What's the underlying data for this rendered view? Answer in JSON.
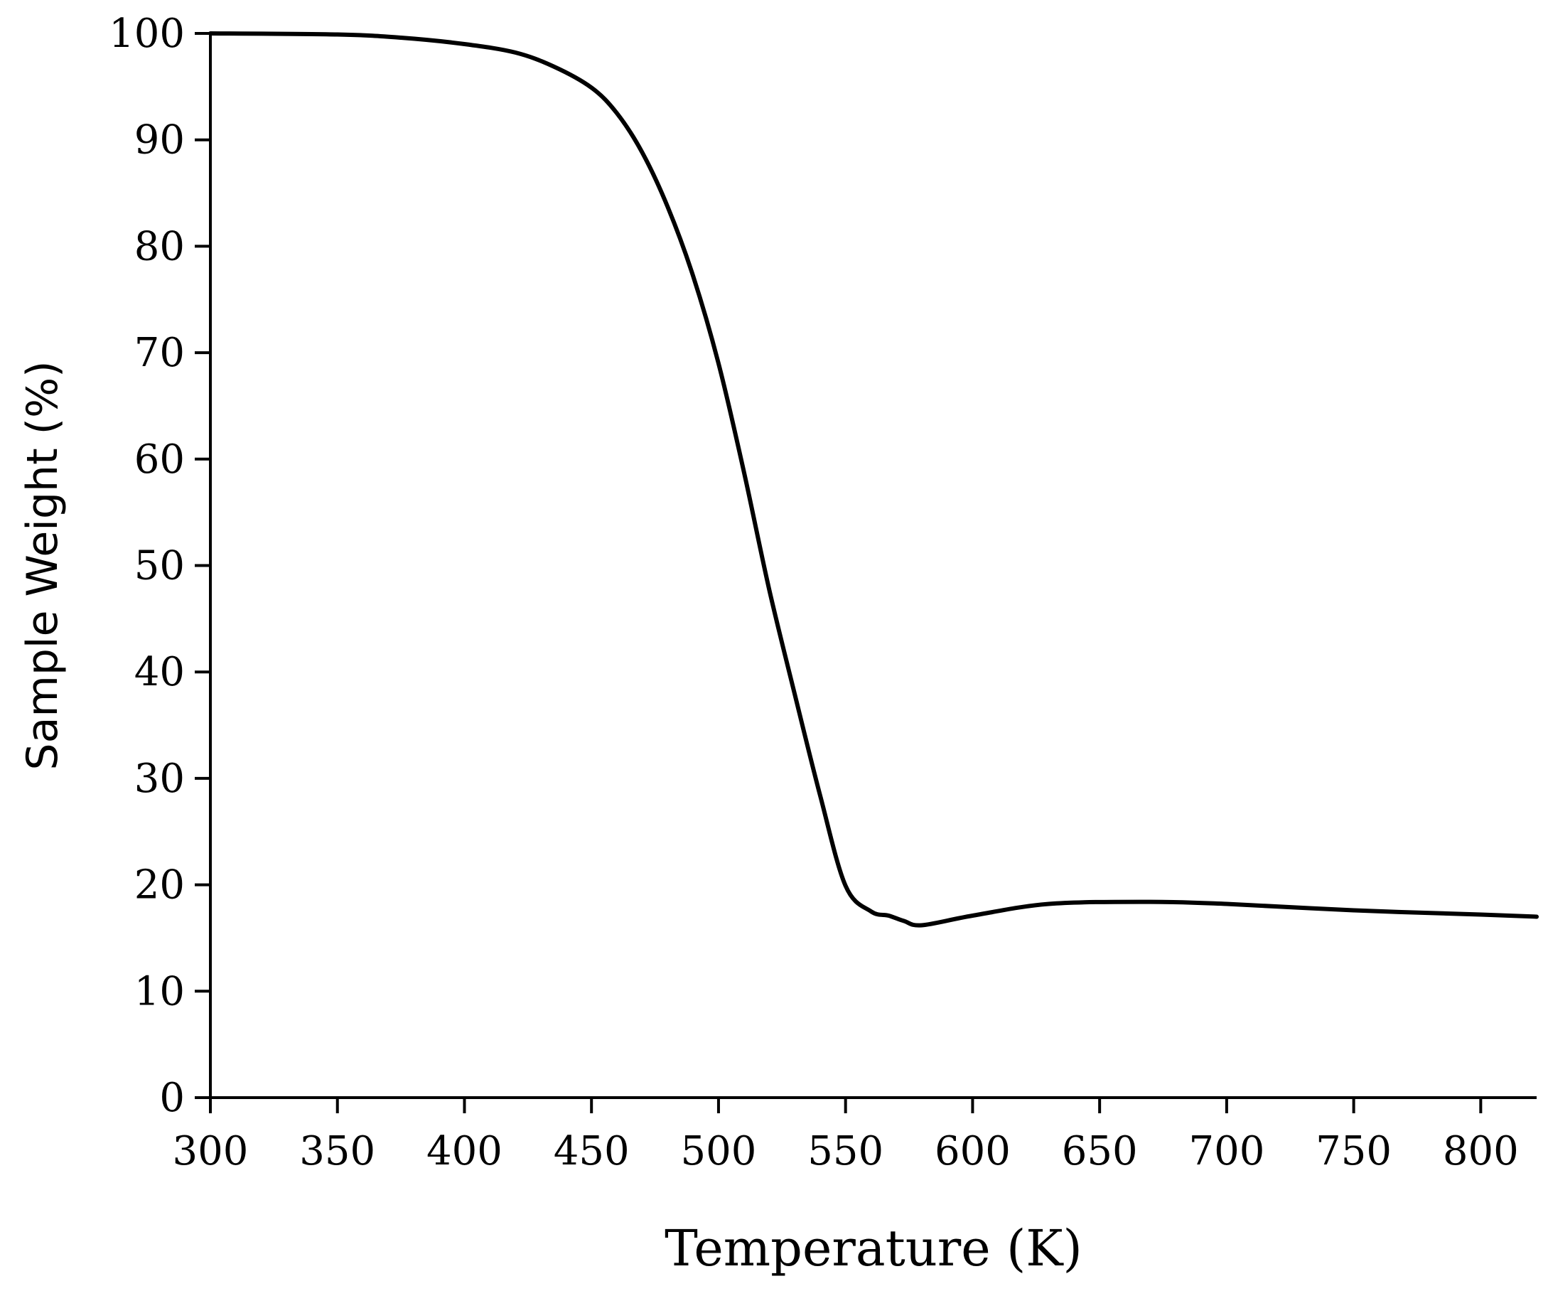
{
  "chart_data": {
    "type": "line",
    "title": "",
    "xlabel": "Temperature (K)",
    "ylabel": "Sample Weight (%)",
    "xlim": [
      300,
      822
    ],
    "ylim": [
      0,
      100
    ],
    "xticks": [
      300,
      350,
      400,
      450,
      500,
      550,
      600,
      650,
      700,
      750,
      800
    ],
    "yticks": [
      0,
      10,
      20,
      30,
      40,
      50,
      60,
      70,
      80,
      90,
      100
    ],
    "grid": false,
    "colors": {
      "line": "#000000",
      "axis": "#000000"
    },
    "series": [
      {
        "x": [
          300,
          350,
          375,
          400,
          420,
          435,
          450,
          460,
          470,
          480,
          490,
          500,
          510,
          520,
          530,
          540,
          550,
          560,
          567,
          573,
          580,
          600,
          630,
          670,
          700,
          750,
          800,
          822
        ],
        "y": [
          100,
          99.9,
          99.6,
          99.0,
          98.2,
          96.9,
          94.9,
          92.5,
          88.8,
          83.7,
          77.2,
          69.0,
          58.8,
          47.7,
          37.9,
          28.4,
          19.9,
          17.5,
          17.1,
          16.6,
          16.2,
          17.1,
          18.2,
          18.4,
          18.2,
          17.6,
          17.2,
          17.0
        ]
      }
    ]
  }
}
